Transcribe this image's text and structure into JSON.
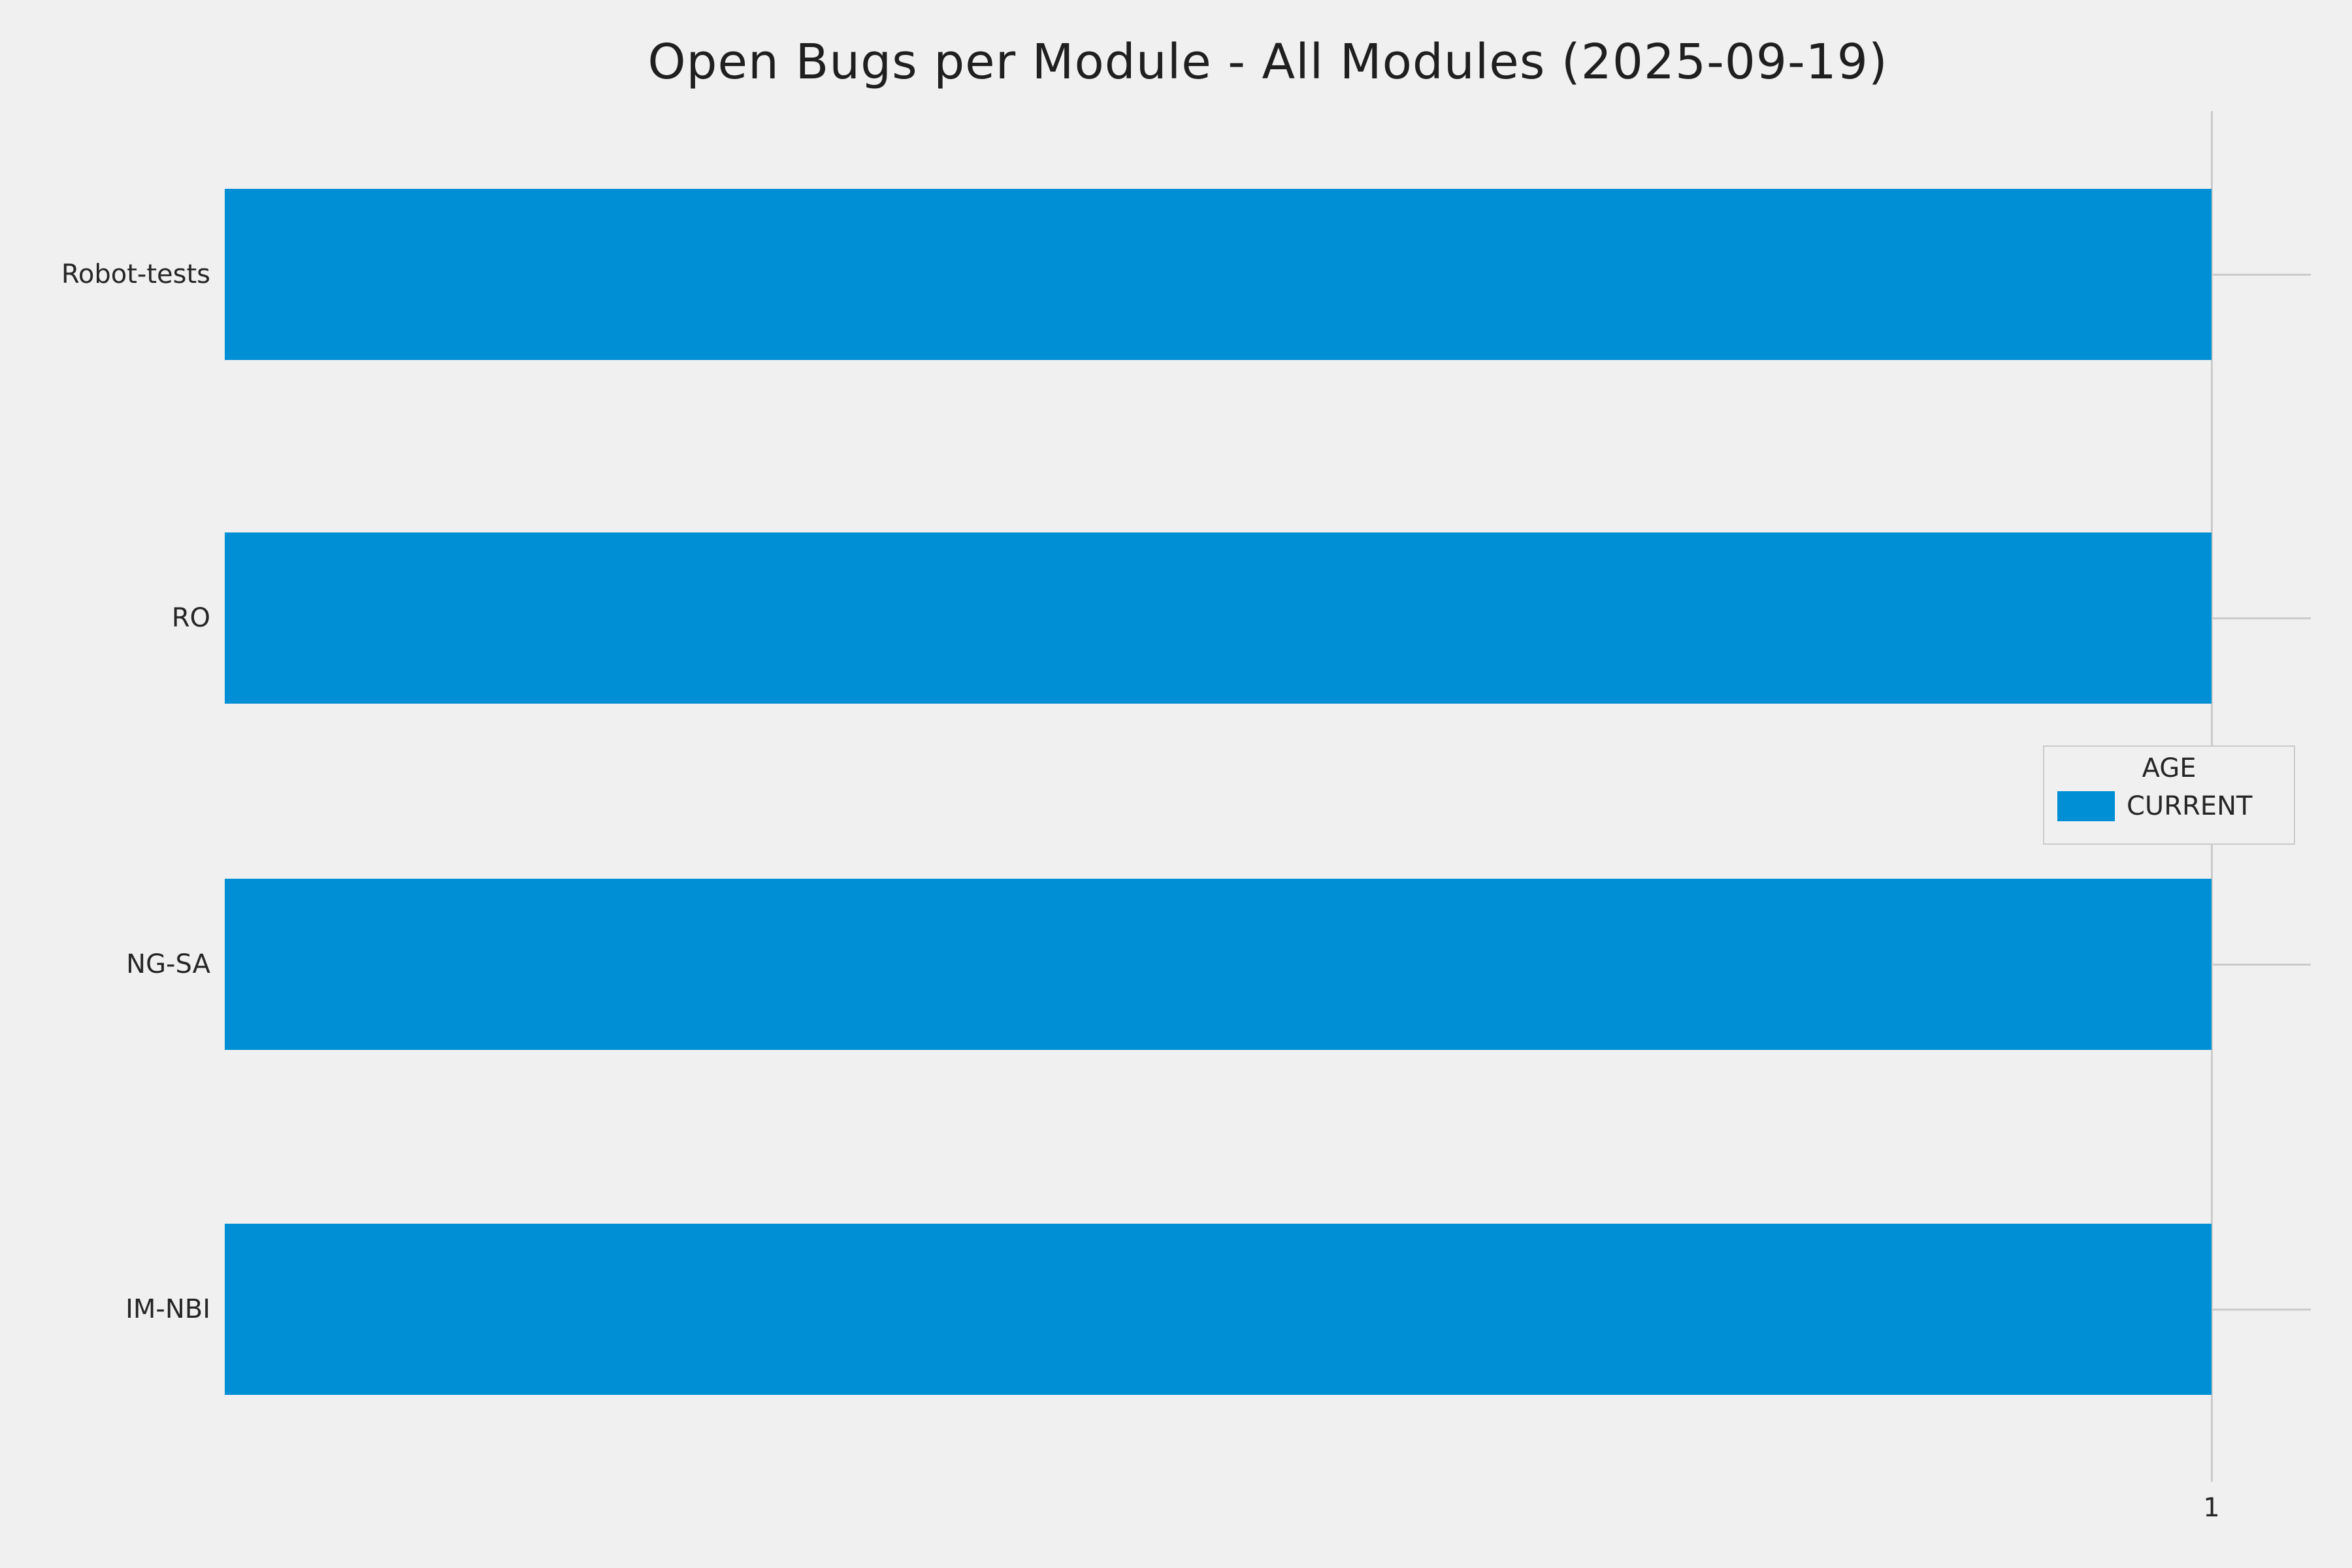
{
  "title": "Open Bugs per Module - All Modules (2025-09-19)",
  "legend": {
    "title": "AGE",
    "entries": [
      {
        "label": "CURRENT",
        "color": "#008fd5"
      }
    ]
  },
  "x_axis": {
    "tick_label": "1"
  },
  "colors": {
    "background": "#f0f0f0",
    "grid": "#cbcbcb",
    "bar": "#008fd5",
    "text": "#262626"
  },
  "chart_data": {
    "type": "bar",
    "orientation": "horizontal",
    "title": "Open Bugs per Module - All Modules (2025-09-19)",
    "categories": [
      "Robot-tests",
      "RO",
      "NG-SA",
      "IM-NBI"
    ],
    "series": [
      {
        "name": "CURRENT",
        "color": "#008fd5",
        "values": [
          1,
          1,
          1,
          1
        ]
      }
    ],
    "xlabel": "",
    "ylabel": "",
    "xlim": [
      0,
      1.05
    ],
    "x_ticks": [
      1
    ],
    "grid": true,
    "legend_title": "AGE",
    "legend_position": "center-right",
    "style": "fivethirtyeight-like gray background"
  }
}
